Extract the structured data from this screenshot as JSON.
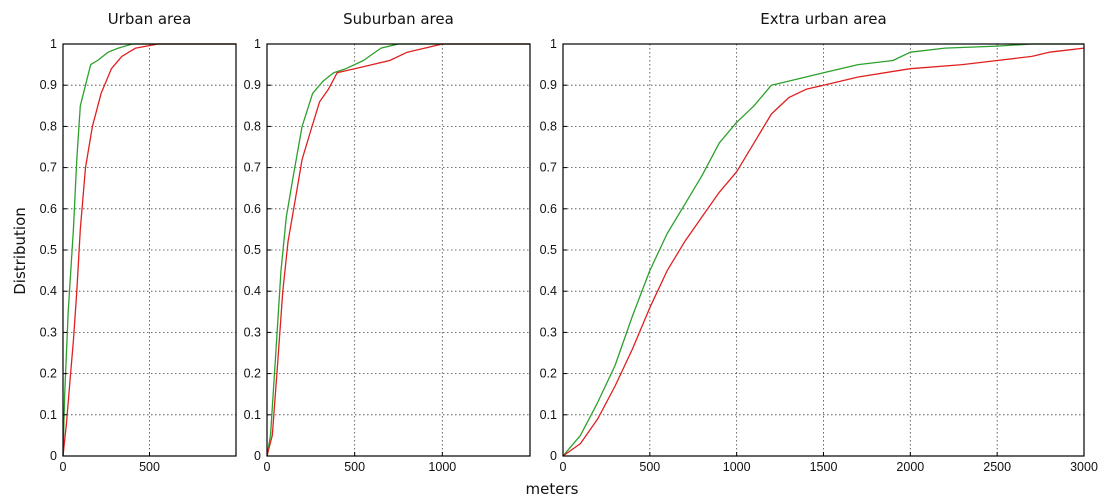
{
  "figure": {
    "ylabel": "Distribution",
    "xlabel": "meters",
    "series_colors": {
      "green": "#2ca02c",
      "red": "#e02020"
    }
  },
  "chart_data": [
    {
      "type": "line",
      "title": "Urban area",
      "xlim": [
        0,
        1000
      ],
      "ylim": [
        0,
        1
      ],
      "x_ticks": [
        0,
        500
      ],
      "y_ticks": [
        0,
        0.1,
        0.2,
        0.3,
        0.4,
        0.5,
        0.6,
        0.7,
        0.8,
        0.9,
        1
      ],
      "y_tick_labels": [
        "0",
        "0.1",
        "0.2",
        "0.3",
        "0.4",
        "0.5",
        "0.6",
        "0.7",
        "0.8",
        "0.9",
        "1"
      ],
      "grid": true,
      "series": [
        {
          "color": "#2ca02c",
          "x": [
            0,
            10,
            30,
            60,
            80,
            100,
            130,
            160,
            200,
            260,
            320,
            400,
            1000
          ],
          "y": [
            0,
            0.15,
            0.35,
            0.55,
            0.72,
            0.85,
            0.9,
            0.95,
            0.96,
            0.98,
            0.99,
            1.0,
            1.0
          ]
        },
        {
          "color": "#e02020",
          "x": [
            0,
            20,
            40,
            60,
            80,
            100,
            130,
            170,
            220,
            280,
            340,
            420,
            550,
            1000
          ],
          "y": [
            0,
            0.08,
            0.18,
            0.28,
            0.4,
            0.55,
            0.7,
            0.8,
            0.88,
            0.94,
            0.97,
            0.99,
            1.0,
            1.0
          ]
        }
      ]
    },
    {
      "type": "line",
      "title": "Suburban area",
      "xlim": [
        0,
        1500
      ],
      "ylim": [
        0,
        1
      ],
      "x_ticks": [
        0,
        500,
        1000
      ],
      "y_ticks": [
        0,
        0.1,
        0.2,
        0.3,
        0.4,
        0.5,
        0.6,
        0.7,
        0.8,
        0.9,
        1
      ],
      "y_tick_labels": [
        "0",
        "0.1",
        "0.2",
        "0.3",
        "0.4",
        "0.5",
        "0.6",
        "0.7",
        "0.8",
        "0.9",
        "1"
      ],
      "grid": true,
      "series": [
        {
          "color": "#2ca02c",
          "x": [
            0,
            20,
            50,
            80,
            110,
            150,
            200,
            260,
            320,
            380,
            450,
            550,
            650,
            750,
            1500
          ],
          "y": [
            0,
            0.05,
            0.25,
            0.45,
            0.58,
            0.68,
            0.8,
            0.88,
            0.91,
            0.93,
            0.94,
            0.96,
            0.99,
            1.0,
            1.0
          ]
        },
        {
          "color": "#e02020",
          "x": [
            0,
            30,
            60,
            90,
            120,
            160,
            200,
            250,
            300,
            350,
            400,
            500,
            600,
            700,
            800,
            900,
            1000,
            1100,
            1500
          ],
          "y": [
            0,
            0.05,
            0.22,
            0.4,
            0.52,
            0.62,
            0.72,
            0.79,
            0.86,
            0.89,
            0.93,
            0.94,
            0.95,
            0.96,
            0.98,
            0.99,
            1.0,
            1.0,
            1.0
          ]
        }
      ]
    },
    {
      "type": "line",
      "title": "Extra urban area",
      "xlim": [
        0,
        3000
      ],
      "ylim": [
        0,
        1
      ],
      "x_ticks": [
        0,
        500,
        1000,
        1500,
        2000,
        2500,
        3000
      ],
      "y_ticks": [
        0,
        0.1,
        0.2,
        0.3,
        0.4,
        0.5,
        0.6,
        0.7,
        0.8,
        0.9,
        1
      ],
      "y_tick_labels": [
        "0",
        "0.1",
        "0.2",
        "0.3",
        "0.4",
        "0.5",
        "0.6",
        "0.7",
        "0.8",
        "0.9",
        "1"
      ],
      "grid": true,
      "series": [
        {
          "color": "#2ca02c",
          "x": [
            0,
            100,
            200,
            300,
            400,
            500,
            600,
            700,
            800,
            900,
            1000,
            1100,
            1200,
            1300,
            1500,
            1700,
            1900,
            2000,
            2200,
            2500,
            2700,
            3000
          ],
          "y": [
            0,
            0.05,
            0.13,
            0.22,
            0.34,
            0.45,
            0.54,
            0.61,
            0.68,
            0.76,
            0.81,
            0.85,
            0.9,
            0.91,
            0.93,
            0.95,
            0.96,
            0.98,
            0.99,
            0.995,
            1.0,
            1.0
          ]
        },
        {
          "color": "#e02020",
          "x": [
            0,
            100,
            200,
            300,
            400,
            500,
            600,
            700,
            800,
            900,
            1000,
            1100,
            1200,
            1300,
            1400,
            1500,
            1700,
            2000,
            2300,
            2500,
            2700,
            2800,
            2900,
            3000
          ],
          "y": [
            0,
            0.03,
            0.09,
            0.17,
            0.26,
            0.36,
            0.45,
            0.52,
            0.58,
            0.64,
            0.69,
            0.76,
            0.83,
            0.87,
            0.89,
            0.9,
            0.92,
            0.94,
            0.95,
            0.96,
            0.97,
            0.98,
            0.985,
            0.99
          ]
        }
      ]
    }
  ]
}
